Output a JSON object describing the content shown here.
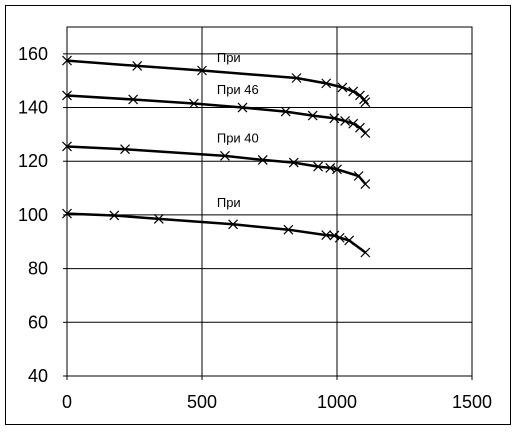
{
  "chart_data": {
    "type": "line",
    "title": "",
    "xlabel": "",
    "ylabel": "",
    "xlim": [
      0,
      1500
    ],
    "ylim": [
      40,
      170
    ],
    "xticks": [
      0,
      500,
      1000,
      1500
    ],
    "yticks": [
      40,
      60,
      80,
      100,
      120,
      140,
      160
    ],
    "grid": true,
    "legend": "none",
    "annotations": [
      {
        "text": "При",
        "x": 555,
        "y": 157
      },
      {
        "text": "При 46",
        "x": 555,
        "y": 145
      },
      {
        "text": "При 40",
        "x": 555,
        "y": 127
      },
      {
        "text": "При",
        "x": 555,
        "y": 103
      }
    ],
    "series": [
      {
        "x": [
          0,
          260,
          500,
          850,
          960,
          1020,
          1060,
          1085,
          1100,
          1105
        ],
        "y": [
          157.5,
          155.5,
          153.8,
          151,
          149,
          147.5,
          146,
          144.5,
          143,
          142
        ]
      },
      {
        "x": [
          0,
          245,
          470,
          650,
          810,
          910,
          990,
          1030,
          1060,
          1085,
          1105
        ],
        "y": [
          144.5,
          143,
          141.5,
          140,
          138.5,
          137,
          136,
          135,
          134,
          132.5,
          130.5
        ]
      },
      {
        "x": [
          0,
          215,
          585,
          725,
          840,
          930,
          975,
          1000,
          1080,
          1105
        ],
        "y": [
          125.5,
          124.5,
          122,
          120.5,
          119.5,
          118,
          117.5,
          117,
          114.5,
          111.5
        ]
      },
      {
        "x": [
          0,
          175,
          340,
          615,
          820,
          960,
          990,
          1010,
          1045,
          1105
        ],
        "y": [
          100.5,
          99.8,
          98.5,
          96.5,
          94.5,
          92.5,
          92.3,
          91.5,
          90.5,
          86
        ]
      }
    ],
    "colors": {
      "line": "#000000",
      "grid": "#000000"
    }
  }
}
